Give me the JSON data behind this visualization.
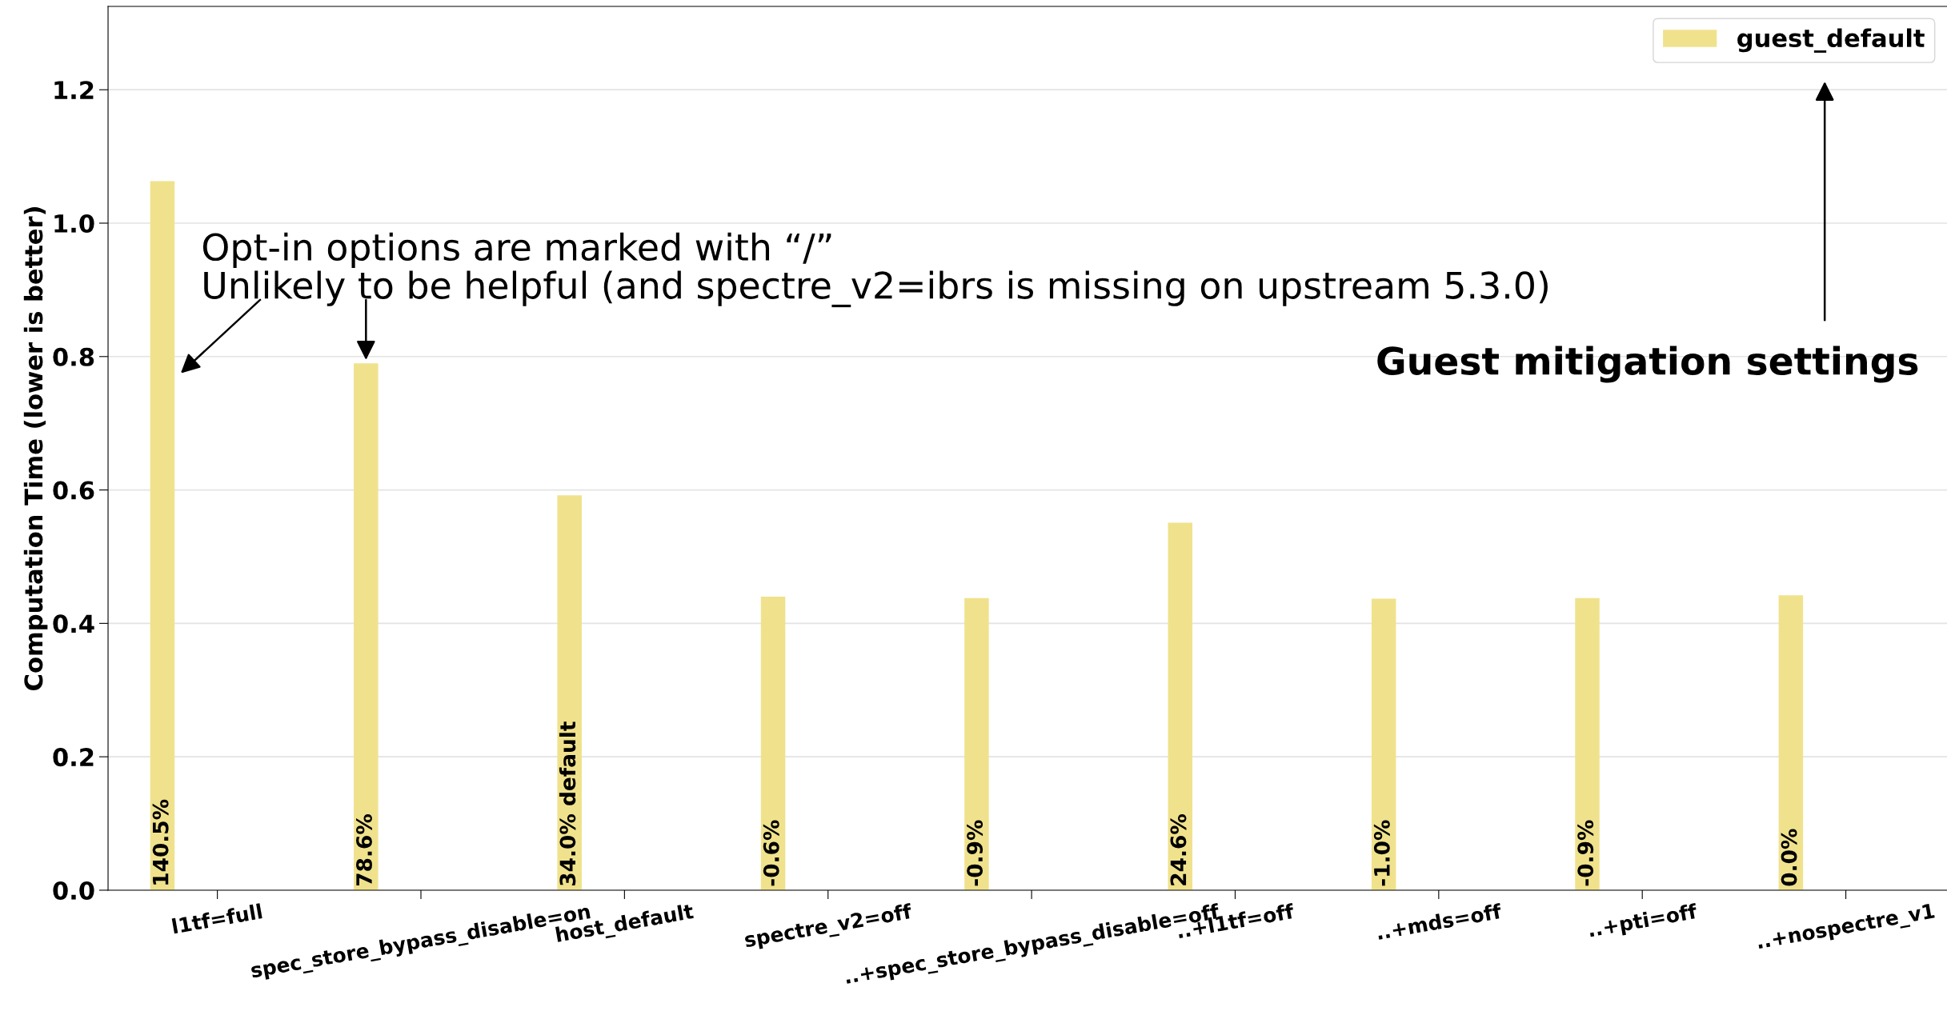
{
  "chart_data": {
    "type": "bar",
    "ylabel": "Computation Time (lower is better)",
    "categories": [
      "l1tf=full",
      "spec_store_bypass_disable=on",
      "host_default",
      "spectre_v2=off",
      "..+spec_store_bypass_disable=off",
      "..+l1tf=off",
      "..+mds=off",
      "..+pti=off",
      "..+nospectre_v1"
    ],
    "series": [
      {
        "name": "guest_default",
        "color": "#f0e28c",
        "values": [
          1.063,
          0.79,
          0.592,
          0.44,
          0.438,
          0.551,
          0.437,
          0.438,
          0.442
        ]
      }
    ],
    "ylim": [
      0,
      1.325
    ],
    "yticks": [
      {
        "value": 0,
        "label": "0.0"
      },
      0.2,
      0.4,
      0.6,
      0.8,
      {
        "value": 1,
        "label": "1.0"
      },
      1.2
    ],
    "grid": "y",
    "legend": "top right",
    "annotations": [
      "140.5%",
      "78.6%",
      "34.0% default",
      "-0.6%",
      "-0.9%",
      "24.6%",
      "-1.0%",
      "-0.9%",
      "0.0%",
      "Opt-in options are marked with “/”\nUnlikely to be helpful (and spectre_v2=ibrs is missing on upstream 5.3.0)",
      "Guest mitigation settings"
    ]
  }
}
